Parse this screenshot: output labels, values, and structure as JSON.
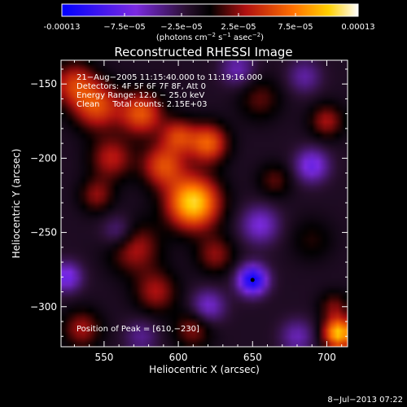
{
  "chart_data": {
    "type": "heatmap",
    "title": "Reconstructed RHESSI Image",
    "xlabel": "Heliocentric X (arcsec)",
    "ylabel": "Heliocentric Y (arcsec)",
    "xlim": [
      521,
      714
    ],
    "ylim": [
      -327,
      -134
    ],
    "x_ticks": [
      550,
      600,
      650,
      700
    ],
    "y_ticks": [
      -150,
      -200,
      -250,
      -300
    ],
    "colorbar": {
      "range": [
        -0.00013,
        0.00013
      ],
      "tick_values": [
        -0.00013,
        -7.5e-05,
        -2.5e-05,
        2.5e-05,
        7.5e-05,
        0.00013
      ],
      "tick_labels": [
        "-0.00013",
        "−7.5e−05",
        "−2.5e−05",
        "2.5e−05",
        "7.5e−05",
        "0.00013"
      ],
      "units_prefix": "(photons cm",
      "units_exp1": "−2",
      "units_mid": " s",
      "units_exp2": "−1",
      "units_after": " asec",
      "units_exp3": "−2",
      "units_suffix": ")"
    },
    "info_lines": [
      "21−Aug−2005 11:15:40.000 to 11:19:16.000",
      "Detectors: 4F 5F 6F 7F 8F, Att 0",
      "Energy Range: 12.0 − 25.0 keV",
      "Clean     Total counts: 2.15E+03"
    ],
    "peak_text": "Position of Peak = [610,−230]",
    "peak": [
      610,
      -230
    ],
    "min_marker": [
      650,
      -282
    ],
    "sources": [
      {
        "x": 610,
        "y": -230,
        "amp": 0.000125,
        "sigma": 12
      },
      {
        "x": 620,
        "y": -190,
        "amp": 8e-05,
        "sigma": 9
      },
      {
        "x": 600,
        "y": -185,
        "amp": 6e-05,
        "sigma": 8
      },
      {
        "x": 590,
        "y": -205,
        "amp": 7e-05,
        "sigma": 10
      },
      {
        "x": 575,
        "y": -170,
        "amp": 7.5e-05,
        "sigma": 10
      },
      {
        "x": 545,
        "y": -165,
        "amp": 7e-05,
        "sigma": 11
      },
      {
        "x": 530,
        "y": -150,
        "amp": 6e-05,
        "sigma": 10
      },
      {
        "x": 555,
        "y": -200,
        "amp": 5e-05,
        "sigma": 10
      },
      {
        "x": 545,
        "y": -225,
        "amp": 4e-05,
        "sigma": 8
      },
      {
        "x": 570,
        "y": -260,
        "amp": 5e-05,
        "sigma": 12
      },
      {
        "x": 585,
        "y": -290,
        "amp": 4.5e-05,
        "sigma": 10
      },
      {
        "x": 625,
        "y": -265,
        "amp": 4e-05,
        "sigma": 9
      },
      {
        "x": 610,
        "y": -315,
        "amp": 4e-05,
        "sigma": 9
      },
      {
        "x": 535,
        "y": -315,
        "amp": 4.5e-05,
        "sigma": 9
      },
      {
        "x": 700,
        "y": -175,
        "amp": 4.5e-05,
        "sigma": 8
      },
      {
        "x": 655,
        "y": -160,
        "amp": 3e-05,
        "sigma": 10
      },
      {
        "x": 665,
        "y": -215,
        "amp": 3e-05,
        "sigma": 8
      },
      {
        "x": 690,
        "y": -255,
        "amp": 2e-05,
        "sigma": 10
      },
      {
        "x": 705,
        "y": -300,
        "amp": 3.5e-05,
        "sigma": 7
      },
      {
        "x": 708,
        "y": -318,
        "amp": 0.00012,
        "sigma": 7
      },
      {
        "x": 650,
        "y": -282,
        "amp": -0.00011,
        "sigma": 7
      },
      {
        "x": 690,
        "y": -205,
        "amp": -6e-05,
        "sigma": 8
      },
      {
        "x": 525,
        "y": -280,
        "amp": -6e-05,
        "sigma": 7
      },
      {
        "x": 655,
        "y": -245,
        "amp": -5e-05,
        "sigma": 9
      },
      {
        "x": 560,
        "y": -250,
        "amp": -4e-05,
        "sigma": 8
      },
      {
        "x": 620,
        "y": -300,
        "amp": -5e-05,
        "sigma": 8
      },
      {
        "x": 680,
        "y": -320,
        "amp": -4e-05,
        "sigma": 8
      },
      {
        "x": 640,
        "y": -140,
        "amp": -4e-05,
        "sigma": 8
      },
      {
        "x": 685,
        "y": -145,
        "amp": -3.5e-05,
        "sigma": 8
      },
      {
        "x": 575,
        "y": -320,
        "amp": -3e-05,
        "sigma": 8
      }
    ],
    "background": -1.5e-05
  },
  "footer_date": "8−Jul−2013 07:22"
}
